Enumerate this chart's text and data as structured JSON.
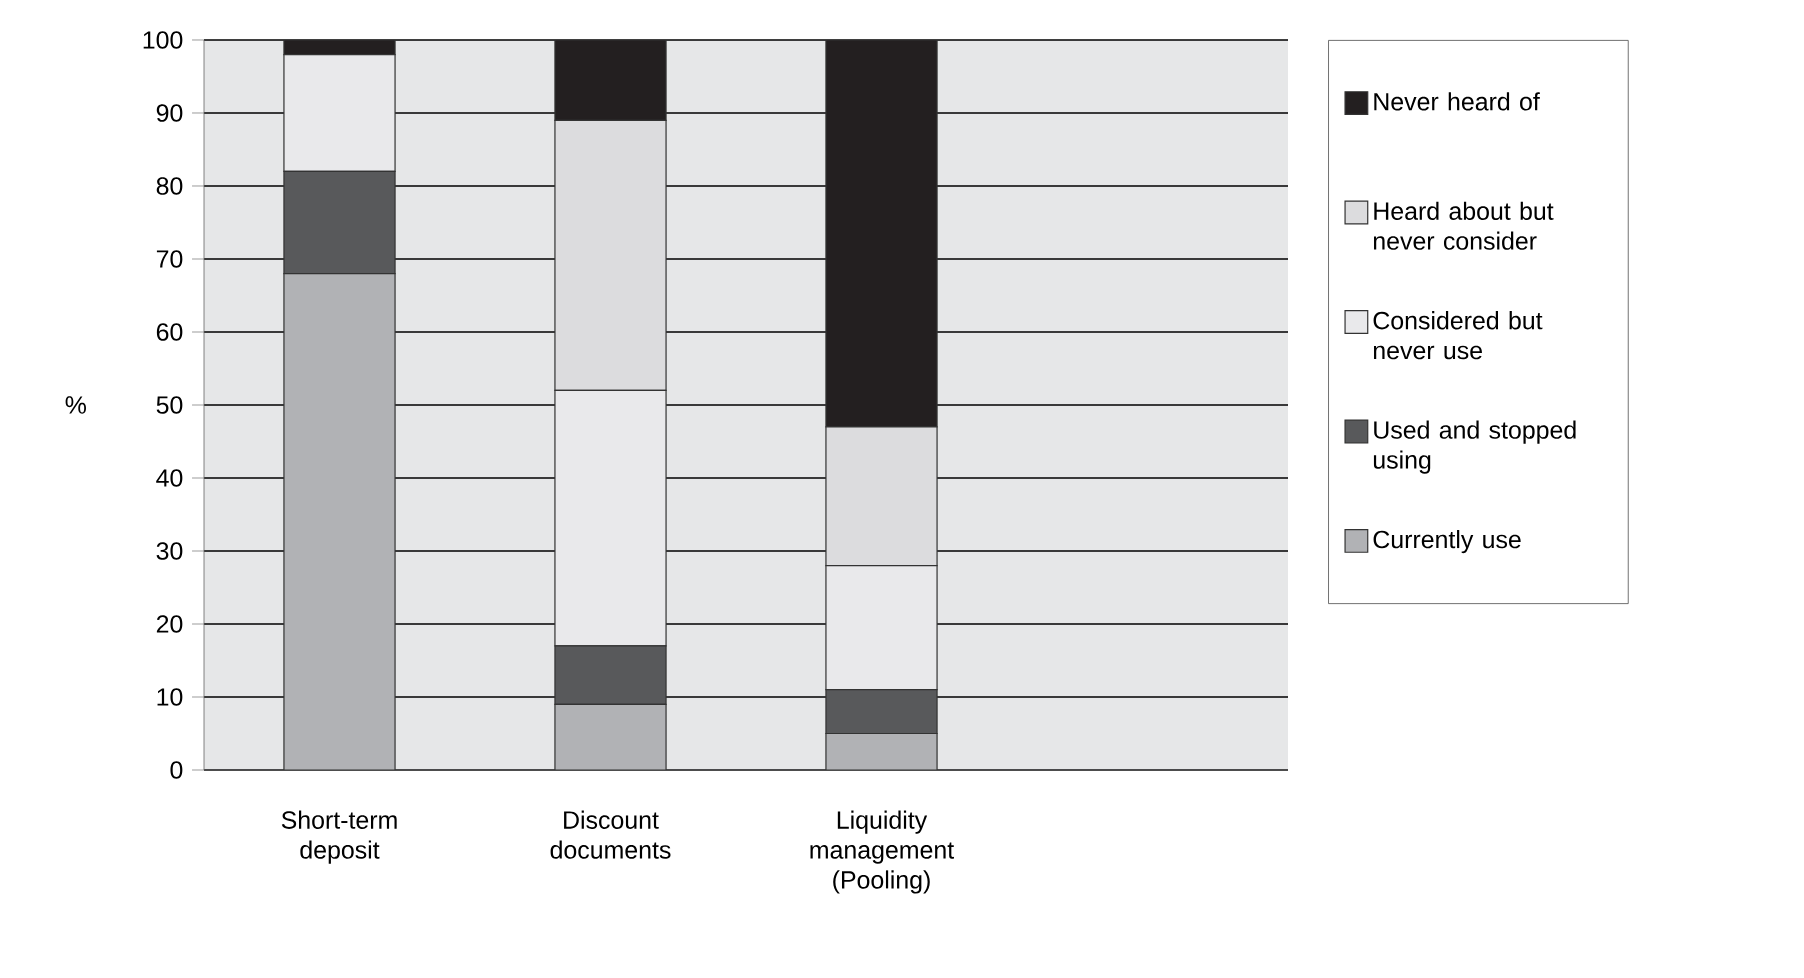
{
  "chart_data": {
    "type": "bar",
    "stacked": true,
    "ylabel": "%",
    "categories": [
      "Short-term deposit",
      "Discount documents",
      "Liquidity management (Pooling)",
      null
    ],
    "series": [
      {
        "name": "Currently use",
        "color": "#b1b2b5",
        "values": [
          68,
          9,
          5,
          null
        ]
      },
      {
        "name": "Used and stopped using",
        "color": "#58595b",
        "values": [
          14,
          8,
          6,
          null
        ]
      },
      {
        "name": "Considered but never use",
        "color": "#e9e9eb",
        "values": [
          16,
          35,
          17,
          null
        ]
      },
      {
        "name": "Heard about but never consider",
        "color": "#dcdcde",
        "values": [
          0,
          37,
          19,
          null
        ]
      },
      {
        "name": "Never heard of",
        "color": "#231f20",
        "values": [
          2,
          11,
          53,
          null
        ]
      }
    ],
    "ylim": [
      0,
      100
    ],
    "yticks": [
      0,
      10,
      20,
      30,
      40,
      50,
      60,
      70,
      80,
      90,
      100
    ],
    "grid": "y",
    "legend": "right"
  }
}
